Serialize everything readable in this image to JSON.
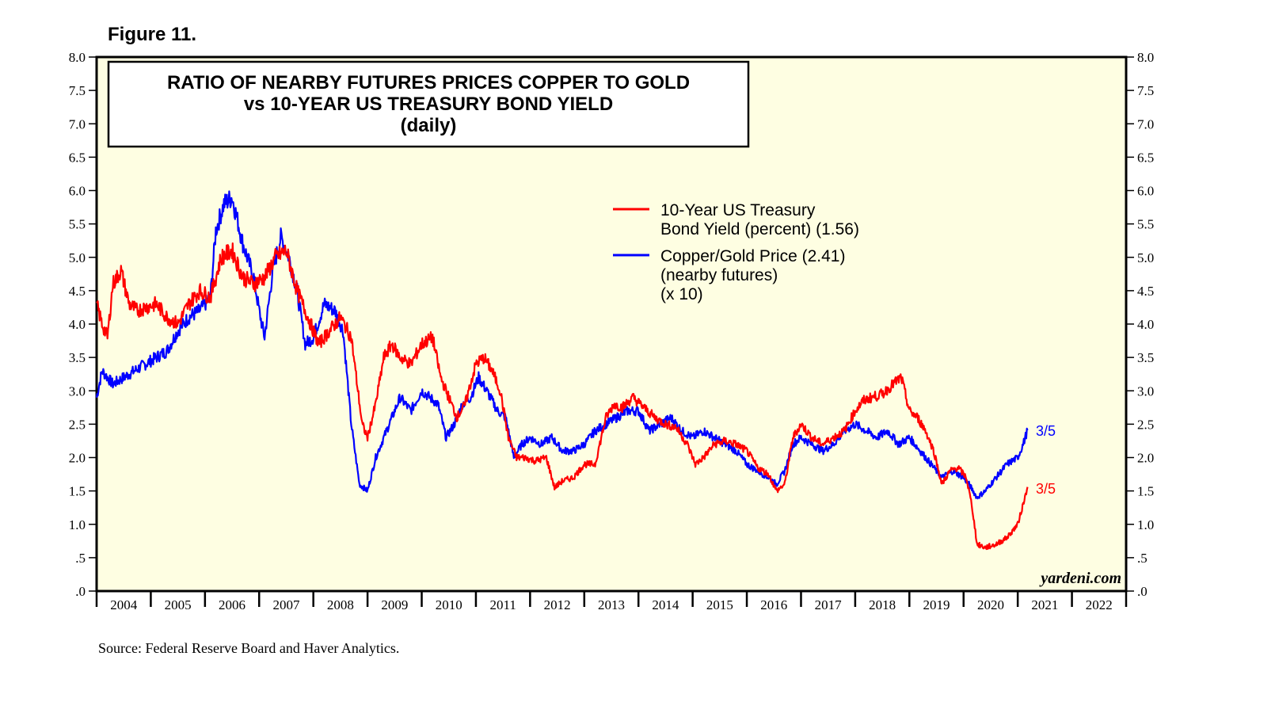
{
  "figure_label": "Figure 11.",
  "source_note": "Source: Federal Reserve Board and Haver Analytics.",
  "watermark": "yardeni.com",
  "colors": {
    "plot_background": "#FEFEE2",
    "yield_line": "#FF0000",
    "copper_gold_line": "#0000FF",
    "axis": "#000000"
  },
  "chart_data": {
    "type": "line",
    "title_lines": [
      "RATIO OF NEARBY FUTURES PRICES COPPER TO GOLD",
      "vs 10-YEAR US TREASURY BOND YIELD",
      "(daily)"
    ],
    "ylim": [
      0,
      8
    ],
    "xlim": [
      2004,
      2023
    ],
    "y_tick_labels": [
      ".0",
      ".5",
      "1.0",
      "1.5",
      "2.0",
      "2.5",
      "3.0",
      "3.5",
      "4.0",
      "4.5",
      "5.0",
      "5.5",
      "6.0",
      "6.5",
      "7.0",
      "7.5",
      "8.0"
    ],
    "y_tick_values": [
      0,
      0.5,
      1,
      1.5,
      2,
      2.5,
      3,
      3.5,
      4,
      4.5,
      5,
      5.5,
      6,
      6.5,
      7,
      7.5,
      8
    ],
    "x_tick_labels": [
      "2004",
      "2005",
      "2006",
      "2007",
      "2008",
      "2009",
      "2010",
      "2011",
      "2012",
      "2013",
      "2014",
      "2015",
      "2016",
      "2017",
      "2018",
      "2019",
      "2020",
      "2021",
      "2022"
    ],
    "legend_position": "upper-middle",
    "series": [
      {
        "name": "10-Year US Treasury Bond Yield",
        "legend_lines": [
          "10-Year US Treasury",
          "Bond Yield (percent) (1.56)"
        ],
        "color": "#FF0000",
        "end_label": "3/5",
        "x": [
          2004.0,
          2004.1,
          2004.2,
          2004.3,
          2004.45,
          2004.6,
          2004.75,
          2004.9,
          2005.1,
          2005.3,
          2005.5,
          2005.7,
          2005.9,
          2006.1,
          2006.3,
          2006.5,
          2006.7,
          2006.9,
          2007.1,
          2007.3,
          2007.5,
          2007.7,
          2007.9,
          2008.1,
          2008.3,
          2008.5,
          2008.7,
          2008.9,
          2009.0,
          2009.15,
          2009.3,
          2009.45,
          2009.6,
          2009.8,
          2010.0,
          2010.2,
          2010.35,
          2010.5,
          2010.65,
          2010.8,
          2011.0,
          2011.15,
          2011.3,
          2011.45,
          2011.6,
          2011.75,
          2011.9,
          2012.1,
          2012.3,
          2012.45,
          2012.6,
          2012.8,
          2013.0,
          2013.2,
          2013.4,
          2013.55,
          2013.7,
          2013.9,
          2014.1,
          2014.3,
          2014.5,
          2014.7,
          2014.9,
          2015.05,
          2015.2,
          2015.4,
          2015.6,
          2015.8,
          2016.0,
          2016.2,
          2016.4,
          2016.55,
          2016.7,
          2016.85,
          2017.0,
          2017.2,
          2017.4,
          2017.6,
          2017.8,
          2018.0,
          2018.15,
          2018.3,
          2018.5,
          2018.7,
          2018.85,
          2019.0,
          2019.15,
          2019.3,
          2019.45,
          2019.6,
          2019.75,
          2019.9,
          2020.05,
          2020.15,
          2020.25,
          2020.4,
          2020.6,
          2020.8,
          2021.0,
          2021.1,
          2021.18
        ],
        "values": [
          4.3,
          4.0,
          3.8,
          4.6,
          4.8,
          4.3,
          4.2,
          4.25,
          4.3,
          4.1,
          4.0,
          4.3,
          4.5,
          4.4,
          5.0,
          5.1,
          4.7,
          4.6,
          4.7,
          5.0,
          5.1,
          4.5,
          4.1,
          3.7,
          3.9,
          4.1,
          3.8,
          2.5,
          2.3,
          2.8,
          3.5,
          3.7,
          3.5,
          3.4,
          3.7,
          3.8,
          3.2,
          2.9,
          2.6,
          2.8,
          3.4,
          3.5,
          3.3,
          3.0,
          2.3,
          2.0,
          2.0,
          1.95,
          2.0,
          1.55,
          1.65,
          1.7,
          1.9,
          1.9,
          2.6,
          2.8,
          2.75,
          2.9,
          2.75,
          2.6,
          2.5,
          2.45,
          2.2,
          1.9,
          2.0,
          2.2,
          2.25,
          2.2,
          2.1,
          1.85,
          1.75,
          1.5,
          1.6,
          2.3,
          2.5,
          2.3,
          2.2,
          2.3,
          2.4,
          2.7,
          2.85,
          2.9,
          2.95,
          3.1,
          3.2,
          2.7,
          2.6,
          2.4,
          2.1,
          1.6,
          1.8,
          1.85,
          1.7,
          1.3,
          0.7,
          0.65,
          0.7,
          0.8,
          1.0,
          1.3,
          1.56
        ]
      },
      {
        "name": "Copper/Gold Price",
        "legend_lines": [
          "Copper/Gold Price (2.41)",
          "(nearby futures)",
          "(x 10)"
        ],
        "color": "#0000FF",
        "end_label": "3/5",
        "x": [
          2004.0,
          2004.1,
          2004.3,
          2004.5,
          2004.7,
          2004.9,
          2005.1,
          2005.3,
          2005.5,
          2005.7,
          2005.9,
          2006.1,
          2006.2,
          2006.35,
          2006.5,
          2006.7,
          2006.9,
          2007.0,
          2007.1,
          2007.25,
          2007.4,
          2007.55,
          2007.7,
          2007.85,
          2008.0,
          2008.2,
          2008.4,
          2008.55,
          2008.7,
          2008.85,
          2009.0,
          2009.15,
          2009.3,
          2009.45,
          2009.6,
          2009.8,
          2010.0,
          2010.15,
          2010.3,
          2010.45,
          2010.6,
          2010.75,
          2010.9,
          2011.05,
          2011.2,
          2011.4,
          2011.55,
          2011.7,
          2011.85,
          2012.0,
          2012.2,
          2012.4,
          2012.6,
          2012.8,
          2013.0,
          2013.2,
          2013.4,
          2013.6,
          2013.8,
          2014.0,
          2014.2,
          2014.4,
          2014.6,
          2014.8,
          2015.0,
          2015.2,
          2015.4,
          2015.6,
          2015.8,
          2016.0,
          2016.2,
          2016.4,
          2016.55,
          2016.7,
          2016.85,
          2017.0,
          2017.2,
          2017.4,
          2017.6,
          2017.8,
          2018.0,
          2018.2,
          2018.4,
          2018.6,
          2018.8,
          2019.0,
          2019.2,
          2019.4,
          2019.6,
          2019.8,
          2020.0,
          2020.1,
          2020.25,
          2020.4,
          2020.6,
          2020.8,
          2021.0,
          2021.1,
          2021.18
        ],
        "values": [
          2.9,
          3.3,
          3.1,
          3.2,
          3.3,
          3.4,
          3.5,
          3.6,
          3.9,
          4.1,
          4.2,
          4.4,
          5.4,
          5.8,
          5.9,
          5.2,
          4.7,
          4.2,
          3.8,
          4.8,
          5.3,
          5.0,
          4.5,
          3.7,
          3.8,
          4.3,
          4.2,
          3.9,
          2.5,
          1.6,
          1.5,
          2.0,
          2.3,
          2.6,
          2.9,
          2.7,
          3.0,
          2.9,
          2.8,
          2.3,
          2.5,
          2.8,
          2.9,
          3.2,
          3.0,
          2.7,
          2.6,
          2.0,
          2.2,
          2.3,
          2.2,
          2.3,
          2.1,
          2.1,
          2.2,
          2.4,
          2.5,
          2.6,
          2.7,
          2.7,
          2.4,
          2.5,
          2.6,
          2.4,
          2.3,
          2.4,
          2.3,
          2.2,
          2.1,
          1.9,
          1.8,
          1.7,
          1.6,
          1.8,
          2.2,
          2.3,
          2.2,
          2.1,
          2.2,
          2.4,
          2.5,
          2.4,
          2.3,
          2.4,
          2.2,
          2.3,
          2.1,
          1.9,
          1.7,
          1.8,
          1.7,
          1.6,
          1.4,
          1.5,
          1.7,
          1.9,
          2.0,
          2.2,
          2.41
        ]
      }
    ]
  }
}
